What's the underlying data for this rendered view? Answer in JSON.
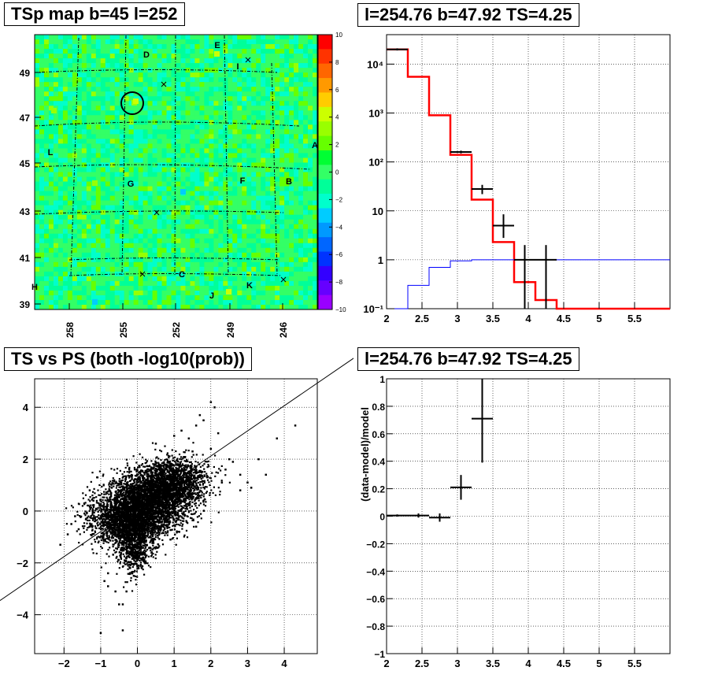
{
  "chart_data": [
    {
      "type": "heatmap",
      "title": "TSp map b=45 l=252",
      "xlabel": "",
      "ylabel": "",
      "x_ticks": [
        "258",
        "255",
        "252",
        "249",
        "246"
      ],
      "y_ticks": [
        "49",
        "47",
        "45",
        "43",
        "41",
        "39"
      ],
      "colorbar_ticks": [
        "10",
        "8",
        "6",
        "4",
        "2",
        "0",
        "−2",
        "−4",
        "−6",
        "−8",
        "−10"
      ],
      "zlim": [
        -10,
        10
      ],
      "colorbar_colors": [
        "#ff0000",
        "#ff3300",
        "#ff6600",
        "#ff9900",
        "#ffcc00",
        "#ccff00",
        "#99ff00",
        "#66ff00",
        "#00ff33",
        "#33ff66",
        "#00ff99",
        "#00ffcc",
        "#00ccff",
        "#0099ff",
        "#0066ff",
        "#0033ff",
        "#3300ff",
        "#6600ff",
        "#9900ff"
      ],
      "source_labels": [
        "D",
        "E",
        "I",
        "L",
        "A",
        "G",
        "F",
        "B",
        "C",
        "K",
        "J",
        "H"
      ],
      "marked_source": "circle near l=254.4, b=47.6"
    },
    {
      "type": "line",
      "title": "l=254.76 b=47.92 TS=4.25",
      "xlabel": "",
      "ylabel": "",
      "yscale": "log",
      "xlim": [
        2,
        6
      ],
      "ylim": [
        0.1,
        40000
      ],
      "x_ticks": [
        "2",
        "2.5",
        "3",
        "3.5",
        "4",
        "4.5",
        "5",
        "5.5"
      ],
      "y_ticks": [
        "10⁻¹",
        "1",
        "10",
        "10²",
        "10³",
        "10⁴"
      ],
      "series": [
        {
          "color": "#ff0000",
          "kind": "step",
          "edges": [
            2,
            2.3,
            2.6,
            2.9,
            3.2,
            3.5,
            3.8,
            4.1,
            4.4,
            6
          ],
          "values": [
            20000,
            5500,
            900,
            140,
            17,
            2.3,
            0.35,
            0.15,
            0.1
          ]
        },
        {
          "color": "#0000ff",
          "kind": "step",
          "edges": [
            2,
            2.3,
            2.6,
            2.9,
            3.2,
            6
          ],
          "values": [
            0.1,
            0.3,
            0.7,
            0.95,
            1.0
          ]
        },
        {
          "color": "#000000",
          "kind": "errorbar",
          "points": [
            {
              "x": 2.15,
              "y": 20000,
              "xerr": 0.15,
              "ylo": 19000,
              "yhi": 21000
            },
            {
              "x": 3.05,
              "y": 160,
              "xerr": 0.15,
              "ylo": 150,
              "yhi": 170
            },
            {
              "x": 3.35,
              "y": 28,
              "xerr": 0.15,
              "ylo": 22,
              "yhi": 34
            },
            {
              "x": 3.65,
              "y": 5,
              "xerr": 0.15,
              "ylo": 2.8,
              "yhi": 8.5
            },
            {
              "x": 3.95,
              "y": 1.0,
              "xerr": 0.15,
              "ylo": 0.1,
              "yhi": 2.0
            },
            {
              "x": 4.25,
              "y": 1.0,
              "xerr": 0.15,
              "ylo": 0.1,
              "yhi": 2.0
            }
          ]
        }
      ]
    },
    {
      "type": "scatter",
      "title": "TS vs PS (both -log10(prob))",
      "xlabel": "",
      "ylabel": "",
      "xlim": [
        -2.8,
        4.9
      ],
      "ylim": [
        -5.5,
        5.1
      ],
      "x_ticks": [
        "−2",
        "−1",
        "0",
        "1",
        "2",
        "3",
        "4"
      ],
      "y_ticks": [
        "−4",
        "−2",
        "0",
        "2",
        "4"
      ],
      "diagonal": [
        [
          -4,
          -3.7
        ],
        [
          6,
          6
        ]
      ],
      "points": [
        [
          -2.1,
          -1.3
        ],
        [
          -1.8,
          -0.5
        ],
        [
          -1.9,
          -0.9
        ],
        [
          -1.3,
          -0.6
        ],
        [
          -1.1,
          1.3
        ],
        [
          -1.0,
          -4.7
        ],
        [
          -0.9,
          -2.7
        ],
        [
          -0.8,
          -2.9
        ],
        [
          -0.5,
          -3.6
        ],
        [
          -0.4,
          -3.6
        ],
        [
          -0.4,
          -4.6
        ],
        [
          -0.6,
          -3.1
        ],
        [
          -0.3,
          -3.1
        ],
        [
          -0.2,
          -2.2
        ],
        [
          0.5,
          2.6
        ],
        [
          1.0,
          2.9
        ],
        [
          1.2,
          3.1
        ],
        [
          1.4,
          2.8
        ],
        [
          1.6,
          3.3
        ],
        [
          1.7,
          3.7
        ],
        [
          1.8,
          3.5
        ],
        [
          2.0,
          4.2
        ],
        [
          2.1,
          4.0
        ],
        [
          2.2,
          3.0
        ],
        [
          2.5,
          2.0
        ],
        [
          2.6,
          1.9
        ],
        [
          2.8,
          1.4
        ],
        [
          3.0,
          1.1
        ],
        [
          3.3,
          2.0
        ],
        [
          3.5,
          1.4
        ],
        [
          3.8,
          2.8
        ],
        [
          4.3,
          3.3
        ],
        [
          2.8,
          0.8
        ],
        [
          3.1,
          0.9
        ],
        [
          2.0,
          2.4
        ],
        [
          1.5,
          2.3
        ],
        [
          -1.3,
          0.8
        ],
        [
          -1.2,
          0.4
        ],
        [
          -1.6,
          -0.7
        ],
        [
          -0.7,
          0.9
        ],
        [
          -0.8,
          -2.4
        ],
        [
          1.9,
          1.3
        ],
        [
          2.3,
          1.1
        ],
        [
          2.4,
          1.6
        ],
        [
          1.6,
          -0.6
        ],
        [
          0.9,
          -1.1
        ],
        [
          -0.1,
          -2.5
        ],
        [
          0.2,
          -1.6
        ],
        [
          -1.4,
          -0.3
        ],
        [
          -1.7,
          -0.2
        ]
      ],
      "cluster": [
        {
          "x": -0.2,
          "y": -0.3,
          "sx": 0.55,
          "sy": 0.55,
          "n": 2500
        },
        {
          "x": 0.5,
          "y": 0.6,
          "sx": 0.55,
          "sy": 0.55,
          "n": 2200
        },
        {
          "x": 1.0,
          "y": 1.2,
          "sx": 0.45,
          "sy": 0.45,
          "n": 1000
        },
        {
          "x": -0.1,
          "y": -1.4,
          "sx": 0.2,
          "sy": 0.5,
          "n": 500
        }
      ]
    },
    {
      "type": "scatter",
      "title": "l=254.76 b=47.92 TS=4.25",
      "xlabel": "",
      "ylabel": "(data-model)/model",
      "xlim": [
        2,
        6
      ],
      "ylim": [
        -1,
        1
      ],
      "x_ticks": [
        "2",
        "2.5",
        "3",
        "3.5",
        "4",
        "4.5",
        "5",
        "5.5"
      ],
      "y_ticks": [
        "−1",
        "−0.8",
        "−0.6",
        "−0.4",
        "−0.2",
        "0",
        "0.2",
        "0.4",
        "0.6",
        "0.8",
        "1"
      ],
      "points": [
        {
          "x": 2.15,
          "y": 0.005,
          "xerr": 0.15,
          "yerr": 0.008
        },
        {
          "x": 2.45,
          "y": 0.005,
          "xerr": 0.15,
          "yerr": 0.015
        },
        {
          "x": 2.75,
          "y": -0.01,
          "xerr": 0.15,
          "yerr": 0.03
        },
        {
          "x": 3.05,
          "y": 0.21,
          "xerr": 0.15,
          "yerr": 0.09
        },
        {
          "x": 3.35,
          "y": 0.71,
          "xerr": 0.15,
          "yerr": 0.32
        }
      ]
    }
  ]
}
